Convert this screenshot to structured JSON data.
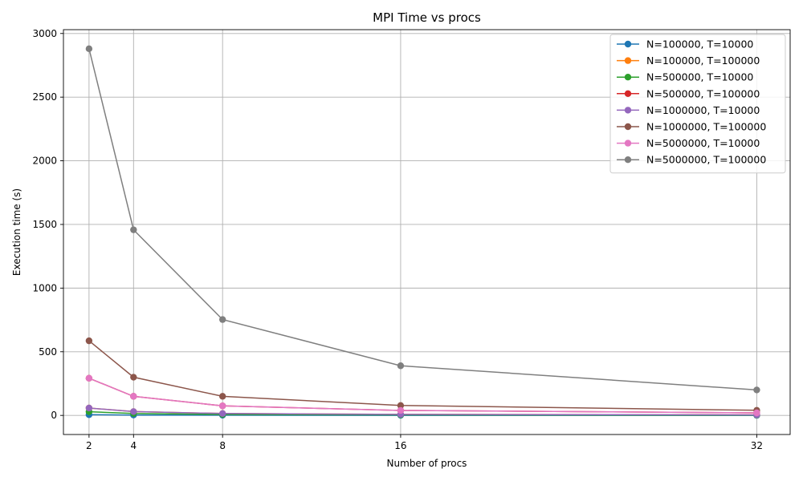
{
  "chart_data": {
    "type": "line",
    "title": "MPI Time vs procs",
    "xlabel": "Number of procs",
    "ylabel": "Execution time (s)",
    "x": [
      2,
      4,
      8,
      16,
      32
    ],
    "x_ticks": [
      2,
      4,
      8,
      16,
      32
    ],
    "x_range": [
      0.85,
      33.5
    ],
    "y_ticks": [
      0,
      500,
      1000,
      1500,
      2000,
      2500,
      3000
    ],
    "y_range": [
      -150,
      3030
    ],
    "grid": true,
    "legend_position": "top-right",
    "marker": "circle",
    "series": [
      {
        "name": "N=100000, T=10000",
        "color": "#1f77b4",
        "values": [
          5.8,
          3.0,
          1.5,
          0.8,
          0.5
        ]
      },
      {
        "name": "N=100000, T=100000",
        "color": "#ff7f0e",
        "values": [
          58,
          30,
          15,
          8,
          4
        ]
      },
      {
        "name": "N=500000, T=10000",
        "color": "#2ca02c",
        "values": [
          29,
          15,
          7.5,
          4,
          2
        ]
      },
      {
        "name": "N=500000, T=100000",
        "color": "#d62728",
        "values": [
          292,
          150,
          75,
          39,
          20
        ]
      },
      {
        "name": "N=1000000, T=10000",
        "color": "#9467bd",
        "values": [
          58,
          30,
          15,
          8,
          4
        ]
      },
      {
        "name": "N=1000000, T=100000",
        "color": "#8c564b",
        "values": [
          586,
          300,
          150,
          78,
          40
        ]
      },
      {
        "name": "N=5000000, T=10000",
        "color": "#e377c2",
        "values": [
          292,
          150,
          75,
          39,
          20
        ]
      },
      {
        "name": "N=5000000, T=100000",
        "color": "#7f7f7f",
        "values": [
          2880,
          1458,
          753,
          390,
          200
        ]
      }
    ]
  }
}
